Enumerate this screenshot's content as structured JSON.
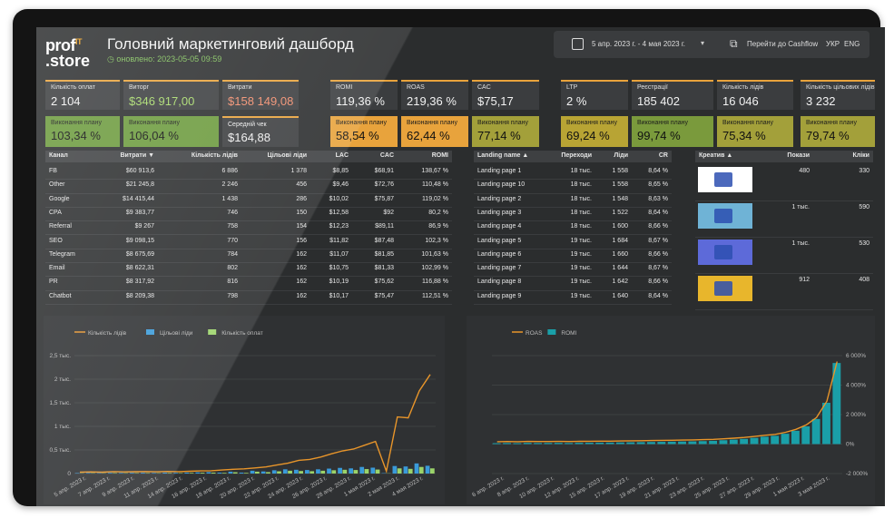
{
  "header": {
    "logo_line1": "prof",
    "logo_sup": "IT",
    "logo_line2": ".store",
    "title": "Головний маркетинговий дашборд",
    "updated": "оновлено: 2023-05-05 09:59"
  },
  "controls": {
    "date_range": "5 апр. 2023 г. - 4 мая 2023 г.",
    "cashflow": "Перейти до Cashflow",
    "lang_ukr": "УКР",
    "lang_eng": "ENG"
  },
  "kpis": [
    {
      "label": "Кількість оплат",
      "value": "2 104",
      "color": "white"
    },
    {
      "label": "Виторг",
      "value": "$346 917,00",
      "color": "green"
    },
    {
      "label": "Витрати",
      "value": "$158 149,08",
      "color": "red"
    },
    {
      "label": "ROMI",
      "value": "119,36 %",
      "color": "white"
    },
    {
      "label": "ROAS",
      "value": "219,36 %",
      "color": "white"
    },
    {
      "label": "CAC",
      "value": "$75,17",
      "color": "white"
    },
    {
      "label": "LTP",
      "value": "2 %",
      "color": "white"
    },
    {
      "label": "Реєстрації",
      "value": "185 402",
      "color": "white"
    },
    {
      "label": "Кількість лідів",
      "value": "16 046",
      "color": "white"
    },
    {
      "label": "Кількість цільових лідів",
      "value": "3 232",
      "color": "white"
    }
  ],
  "plans": [
    {
      "label": "Виконання плану",
      "value": "103,34 %",
      "bg": "#6b9a3c"
    },
    {
      "label": "Виконання плану",
      "value": "106,04 %",
      "bg": "#6b9a3c"
    },
    {
      "label": "Середній чек",
      "value": "$164,88",
      "bg": "grey"
    },
    {
      "label": "Виконання плану",
      "value": "58,54 %",
      "bg": "#e8a33c"
    },
    {
      "label": "Виконання плану",
      "value": "62,44 %",
      "bg": "#e8a33c"
    },
    {
      "label": "Виконання плану",
      "value": "77,14 %",
      "bg": "#a3a03a"
    },
    {
      "label": "Виконання плану",
      "value": "69,24 %",
      "bg": "#b8a434"
    },
    {
      "label": "Виконання плану",
      "value": "99,74 %",
      "bg": "#7a9a3c"
    },
    {
      "label": "Виконання плану",
      "value": "75,34 %",
      "bg": "#a3a03a"
    },
    {
      "label": "Виконання плану",
      "value": "79,74 %",
      "bg": "#a3a03a"
    }
  ],
  "channels": {
    "headers": [
      "Канал",
      "Витрати ▼",
      "Кількість лідів",
      "Цільові ліди",
      "LAC",
      "CAC",
      "ROMI"
    ],
    "rows": [
      [
        "FB",
        "$60 913,6",
        "6 886",
        "1 378",
        "$8,85",
        "$68,91",
        "138,67 %"
      ],
      [
        "Other",
        "$21 245,8",
        "2 246",
        "456",
        "$9,46",
        "$72,76",
        "110,48 %"
      ],
      [
        "Google",
        "$14 415,44",
        "1 438",
        "286",
        "$10,02",
        "$75,87",
        "119,02 %"
      ],
      [
        "CPA",
        "$9 383,77",
        "746",
        "150",
        "$12,58",
        "$92",
        "80,2 %"
      ],
      [
        "Referral",
        "$9 267",
        "758",
        "154",
        "$12,23",
        "$89,11",
        "86,9 %"
      ],
      [
        "SEO",
        "$9 098,15",
        "770",
        "156",
        "$11,82",
        "$87,48",
        "102,3 %"
      ],
      [
        "Telegram",
        "$8 675,69",
        "784",
        "162",
        "$11,07",
        "$81,85",
        "101,63 %"
      ],
      [
        "Email",
        "$8 622,31",
        "802",
        "162",
        "$10,75",
        "$81,33",
        "102,99 %"
      ],
      [
        "PR",
        "$8 317,92",
        "816",
        "162",
        "$10,19",
        "$75,62",
        "116,88 %"
      ],
      [
        "Chatbot",
        "$8 209,38",
        "798",
        "162",
        "$10,17",
        "$75,47",
        "112,51 %"
      ]
    ]
  },
  "landing": {
    "headers": [
      "Landing name ▲",
      "Переходи",
      "Ліди",
      "CR"
    ],
    "rows": [
      [
        "Landing page 1",
        "18 тыс.",
        "1 558",
        "8,64 %"
      ],
      [
        "Landing page 10",
        "18 тыс.",
        "1 558",
        "8,65 %"
      ],
      [
        "Landing page 2",
        "18 тыс.",
        "1 548",
        "8,63 %"
      ],
      [
        "Landing page 3",
        "18 тыс.",
        "1 522",
        "8,64 %"
      ],
      [
        "Landing page 4",
        "18 тыс.",
        "1 600",
        "8,66 %"
      ],
      [
        "Landing page 5",
        "19 тыс.",
        "1 684",
        "8,67 %"
      ],
      [
        "Landing page 6",
        "19 тыс.",
        "1 660",
        "8,66 %"
      ],
      [
        "Landing page 7",
        "19 тыс.",
        "1 644",
        "8,67 %"
      ],
      [
        "Landing page 8",
        "19 тыс.",
        "1 642",
        "8,66 %"
      ],
      [
        "Landing page 9",
        "19 тыс.",
        "1 640",
        "8,64 %"
      ]
    ]
  },
  "creatives": {
    "headers": [
      "Креатив ▲",
      "Покази",
      "Кліки"
    ],
    "rows": [
      {
        "shows": "480",
        "clicks": "330"
      },
      {
        "shows": "1 тыс.",
        "clicks": "590"
      },
      {
        "shows": "1 тыс.",
        "clicks": "530"
      },
      {
        "shows": "912",
        "clicks": "408"
      }
    ]
  },
  "chart_data": [
    {
      "type": "bar+line",
      "legend": [
        "Кількість лідів",
        "Цільові ліди",
        "Кількість оплат"
      ],
      "colors": {
        "leads": "#e8952a",
        "target": "#3a9ad9",
        "payments": "#9bd36a"
      },
      "ylim": [
        0,
        2500
      ],
      "yticks": [
        "0",
        "0,5 тыс.",
        "1 тыс.",
        "1,5 тыс.",
        "2 тыс.",
        "2,5 тыс."
      ],
      "xticks": [
        "5 апр. 2023 г.",
        "7 апр. 2023 г.",
        "9 апр. 2023 г.",
        "11 апр. 2023 г.",
        "14 апр. 2023 г.",
        "16 апр. 2023 г.",
        "18 апр. 2023 г.",
        "20 апр. 2023 г.",
        "22 апр. 2023 г.",
        "24 апр. 2023 г.",
        "26 апр. 2023 г.",
        "28 апр. 2023 г.",
        "1 мая 2023 г.",
        "2 мая 2023 г.",
        "4 мая 2023 г."
      ],
      "series": [
        {
          "name": "Кількість лідів",
          "values": [
            30,
            35,
            28,
            40,
            35,
            38,
            42,
            36,
            45,
            40,
            48,
            55,
            60,
            75,
            90,
            100,
            120,
            140,
            180,
            220,
            280,
            300,
            350,
            420,
            480,
            520,
            600,
            680,
            50,
            1200,
            1180,
            1750,
            2100
          ]
        },
        {
          "name": "Цільові ліди",
          "values": [
            10,
            12,
            9,
            14,
            12,
            15,
            16,
            12,
            18,
            15,
            20,
            25,
            30,
            20,
            40,
            20,
            60,
            45,
            70,
            90,
            80,
            75,
            90,
            105,
            120,
            110,
            140,
            125,
            8,
            160,
            150,
            215,
            165
          ]
        },
        {
          "name": "Кількість оплат",
          "values": [
            6,
            8,
            6,
            10,
            8,
            10,
            10,
            8,
            12,
            10,
            14,
            18,
            20,
            14,
            28,
            14,
            40,
            30,
            48,
            60,
            54,
            50,
            60,
            70,
            80,
            75,
            95,
            85,
            5,
            110,
            100,
            140,
            110
          ]
        }
      ]
    },
    {
      "type": "bar+line",
      "legend": [
        "ROAS",
        "ROMI"
      ],
      "colors": {
        "roas": "#e8952a",
        "romi": "#1a9fa8"
      },
      "ylim": [
        -2000,
        6000
      ],
      "yticks": [
        "-2 000%",
        "0%",
        "2 000%",
        "4 000%",
        "6 000%"
      ],
      "xticks": [
        "6 апр. 2023 г.",
        "8 апр. 2023 г.",
        "10 апр. 2023 г.",
        "12 апр. 2023 г.",
        "15 апр. 2023 г.",
        "17 апр. 2023 г.",
        "19 апр. 2023 г.",
        "21 апр. 2023 г.",
        "23 апр. 2023 г.",
        "25 апр. 2023 г.",
        "27 апр. 2023 г.",
        "29 апр. 2023 г.",
        "1 мая 2023 г.",
        "3 мая 2023 г."
      ],
      "series": [
        {
          "name": "ROMI",
          "values": [
            60,
            70,
            60,
            80,
            70,
            75,
            80,
            70,
            85,
            90,
            95,
            100,
            110,
            120,
            130,
            140,
            150,
            160,
            170,
            180,
            200,
            220,
            260,
            300,
            350,
            420,
            500,
            560,
            700,
            900,
            1200,
            1700,
            2800,
            5500
          ]
        },
        {
          "name": "ROAS",
          "values": [
            160,
            170,
            160,
            180,
            170,
            175,
            180,
            170,
            185,
            190,
            195,
            200,
            210,
            220,
            230,
            240,
            250,
            260,
            270,
            280,
            300,
            320,
            360,
            400,
            450,
            520,
            600,
            660,
            800,
            1000,
            1300,
            1800,
            2900,
            5600
          ]
        }
      ]
    }
  ]
}
